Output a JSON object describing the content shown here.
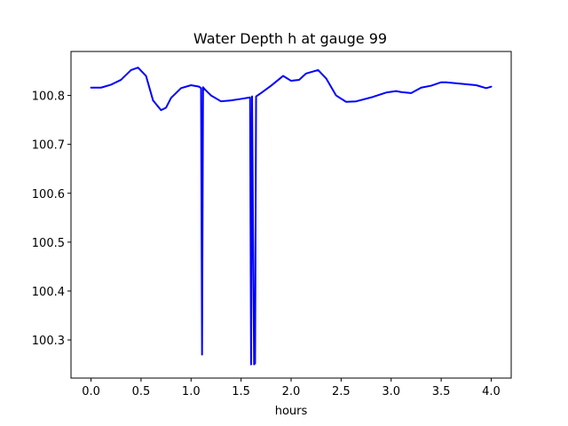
{
  "chart_data": {
    "type": "line",
    "title": "Water Depth h at gauge 99",
    "xlabel": "hours",
    "ylabel": "",
    "xlim": [
      -0.2,
      4.2
    ],
    "ylim": [
      100.222,
      100.89
    ],
    "xticks": [
      0.0,
      0.5,
      1.0,
      1.5,
      2.0,
      2.5,
      3.0,
      3.5,
      4.0
    ],
    "xtick_labels": [
      "0.0",
      "0.5",
      "1.0",
      "1.5",
      "2.0",
      "2.5",
      "3.0",
      "3.5",
      "4.0"
    ],
    "yticks": [
      100.3,
      100.4,
      100.5,
      100.6,
      100.7,
      100.8
    ],
    "ytick_labels": [
      "100.3",
      "100.4",
      "100.5",
      "100.6",
      "100.7",
      "100.8"
    ],
    "grid": false,
    "line_color": "#0000ff",
    "series": [
      {
        "x": [
          0.0,
          0.1,
          0.2,
          0.3,
          0.4,
          0.47,
          0.55,
          0.62,
          0.7,
          0.75,
          0.8,
          0.9,
          1.0,
          1.08,
          1.1,
          1.11,
          1.12,
          1.14,
          1.2,
          1.3,
          1.4,
          1.5,
          1.59,
          1.6,
          1.61,
          1.63,
          1.64,
          1.65,
          1.7,
          1.8,
          1.92,
          2.0,
          2.08,
          2.15,
          2.27,
          2.35,
          2.45,
          2.55,
          2.65,
          2.8,
          2.95,
          3.05,
          3.1,
          3.2,
          3.3,
          3.4,
          3.5,
          3.55,
          3.7,
          3.85,
          3.95,
          4.0
        ],
        "y": [
          100.816,
          100.816,
          100.822,
          100.832,
          100.852,
          100.857,
          100.84,
          100.79,
          100.77,
          100.775,
          100.795,
          100.815,
          100.821,
          100.818,
          100.815,
          100.27,
          100.817,
          100.812,
          100.8,
          100.788,
          100.79,
          100.793,
          100.796,
          100.25,
          100.798,
          100.25,
          100.252,
          100.798,
          100.805,
          100.82,
          100.84,
          100.83,
          100.832,
          100.845,
          100.852,
          100.835,
          100.8,
          100.787,
          100.788,
          100.796,
          100.806,
          100.809,
          100.807,
          100.805,
          100.816,
          100.82,
          100.827,
          100.827,
          100.824,
          100.821,
          100.815,
          100.818
        ]
      }
    ]
  }
}
